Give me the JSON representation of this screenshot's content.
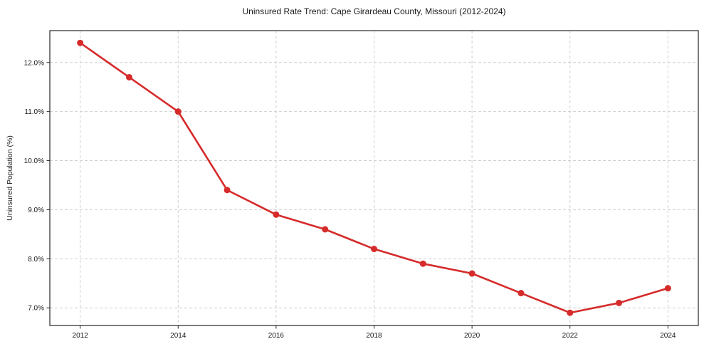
{
  "chart_data": {
    "type": "line",
    "title": "Uninsured Rate Trend: Cape Girardeau County, Missouri (2012-2024)",
    "xlabel": "",
    "ylabel": "Uninsured Population (%)",
    "x": [
      2012,
      2013,
      2014,
      2015,
      2016,
      2017,
      2018,
      2019,
      2020,
      2021,
      2022,
      2023,
      2024
    ],
    "values": [
      12.4,
      11.7,
      11.0,
      9.4,
      8.9,
      8.6,
      8.2,
      7.9,
      7.7,
      7.3,
      6.9,
      7.1,
      7.4
    ],
    "xlim": [
      2011.38,
      2024.62
    ],
    "ylim": [
      6.64,
      12.65
    ],
    "xticks": {
      "values": [
        2012,
        2014,
        2016,
        2018,
        2020,
        2022,
        2024
      ],
      "labels": [
        "2012",
        "2014",
        "2016",
        "2018",
        "2020",
        "2022",
        "2024"
      ]
    },
    "yticks": {
      "values": [
        7,
        8,
        9,
        10,
        11,
        12
      ],
      "labels": [
        "7.0%",
        "8.0%",
        "9.0%",
        "10.0%",
        "11.0%",
        "12.0%"
      ]
    },
    "grid": true,
    "legend_position": "none",
    "colors": {
      "line": "#d62b2b",
      "marker": "#d62b2b",
      "gridline": "#cfcfcf",
      "spine": "#262626",
      "background": "#ffffff"
    }
  }
}
